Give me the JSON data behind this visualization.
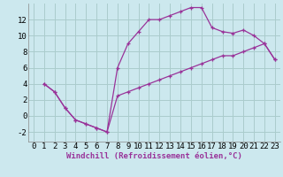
{
  "xlabel": "Windchill (Refroidissement éolien,°C)",
  "bg_color": "#cce8ee",
  "grid_color": "#aacccc",
  "line_color": "#993399",
  "xlim": [
    -0.5,
    23.5
  ],
  "ylim": [
    -3.2,
    14.0
  ],
  "xticks": [
    0,
    1,
    2,
    3,
    4,
    5,
    6,
    7,
    8,
    9,
    10,
    11,
    12,
    13,
    14,
    15,
    16,
    17,
    18,
    19,
    20,
    21,
    22,
    23
  ],
  "yticks": [
    -2,
    0,
    2,
    4,
    6,
    8,
    10,
    12
  ],
  "upper_curve_x": [
    1,
    2,
    3,
    4,
    5,
    6,
    7,
    8,
    9,
    10,
    11,
    12,
    13,
    14,
    15,
    16,
    17,
    18,
    19,
    20,
    21,
    22,
    23
  ],
  "upper_curve_y": [
    4,
    3,
    1,
    -0.5,
    -1,
    -1.5,
    -2,
    6,
    9,
    10.5,
    12,
    12,
    12.5,
    13,
    13.5,
    13.5,
    11,
    10.5,
    10.3,
    10.7,
    10,
    9,
    7
  ],
  "lower_curve_x": [
    1,
    2,
    3,
    4,
    5,
    6,
    7,
    8,
    9,
    10,
    11,
    12,
    13,
    14,
    15,
    16,
    17,
    18,
    19,
    20,
    21,
    22,
    23
  ],
  "lower_curve_y": [
    4,
    3,
    1,
    -0.5,
    -1,
    -1.5,
    -2,
    2.5,
    3,
    3.5,
    4,
    4.5,
    5,
    5.5,
    6,
    6.5,
    7,
    7.5,
    7.5,
    8,
    8.5,
    9,
    7
  ],
  "xlabel_fontsize": 6.5,
  "tick_fontsize": 6.5,
  "ylabel_fontsize": 7
}
